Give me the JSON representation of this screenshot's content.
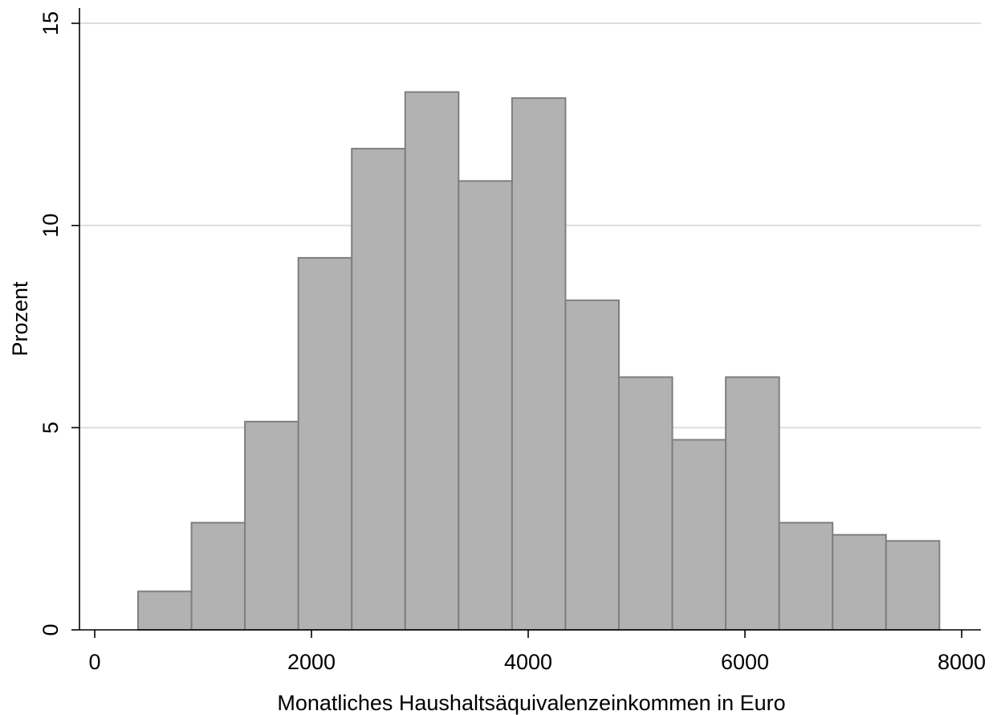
{
  "chart_data": {
    "type": "bar",
    "subtype": "histogram",
    "title": "",
    "xlabel": "Monatliches Haushaltsäquivalenzeinkommen in Euro",
    "ylabel": "Prozent",
    "xlim": [
      -200,
      8200
    ],
    "ylim": [
      0,
      15
    ],
    "x_ticks": [
      0,
      2000,
      4000,
      6000,
      8000
    ],
    "y_ticks": [
      0,
      5,
      10,
      15
    ],
    "grid": "horizontal",
    "bin_width": 493,
    "bins": [
      {
        "start": 400,
        "end": 893,
        "value": 0.95
      },
      {
        "start": 893,
        "end": 1386,
        "value": 2.65
      },
      {
        "start": 1386,
        "end": 1879,
        "value": 5.15
      },
      {
        "start": 1879,
        "end": 2372,
        "value": 9.2
      },
      {
        "start": 2372,
        "end": 2865,
        "value": 11.9
      },
      {
        "start": 2865,
        "end": 3358,
        "value": 13.3
      },
      {
        "start": 3358,
        "end": 3851,
        "value": 11.1
      },
      {
        "start": 3851,
        "end": 4344,
        "value": 13.15
      },
      {
        "start": 4344,
        "end": 4837,
        "value": 8.15
      },
      {
        "start": 4837,
        "end": 5330,
        "value": 6.25
      },
      {
        "start": 5330,
        "end": 5823,
        "value": 4.7
      },
      {
        "start": 5823,
        "end": 6316,
        "value": 6.25
      },
      {
        "start": 6316,
        "end": 6809,
        "value": 2.65
      },
      {
        "start": 6809,
        "end": 7302,
        "value": 2.35
      },
      {
        "start": 7302,
        "end": 7795,
        "value": 2.2
      }
    ],
    "colors": {
      "bar_fill": "#b2b2b2",
      "bar_stroke": "#7f7f7f",
      "grid": "#dcdcdc",
      "axis": "#000000"
    }
  }
}
